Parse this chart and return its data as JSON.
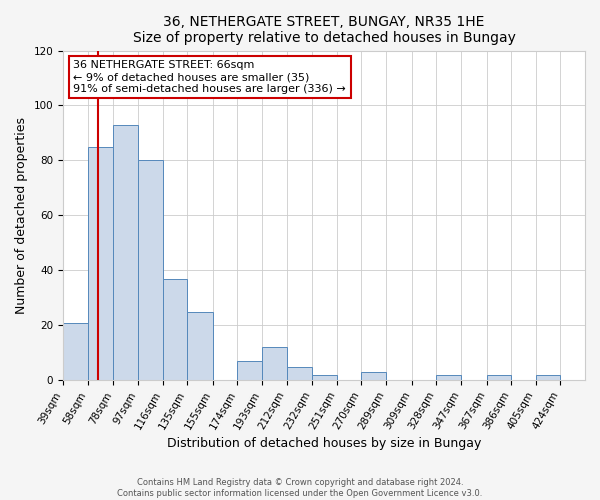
{
  "title1": "36, NETHERGATE STREET, BUNGAY, NR35 1HE",
  "title2": "Size of property relative to detached houses in Bungay",
  "xlabel": "Distribution of detached houses by size in Bungay",
  "ylabel": "Number of detached properties",
  "bin_labels": [
    "39sqm",
    "58sqm",
    "78sqm",
    "97sqm",
    "116sqm",
    "135sqm",
    "155sqm",
    "174sqm",
    "193sqm",
    "212sqm",
    "232sqm",
    "251sqm",
    "270sqm",
    "289sqm",
    "309sqm",
    "328sqm",
    "347sqm",
    "367sqm",
    "386sqm",
    "405sqm",
    "424sqm"
  ],
  "bin_left_edges": [
    39,
    58,
    78,
    97,
    116,
    135,
    155,
    174,
    193,
    212,
    232,
    251,
    270,
    289,
    309,
    328,
    347,
    367,
    386,
    405,
    424
  ],
  "bar_heights": [
    21,
    85,
    93,
    80,
    37,
    25,
    0,
    7,
    12,
    5,
    2,
    0,
    3,
    0,
    0,
    2,
    0,
    2,
    0,
    2,
    0
  ],
  "bar_color": "#ccd9ea",
  "bar_edge_color": "#5588bb",
  "vline_x": 66,
  "vline_color": "#cc0000",
  "annotation_text": "36 NETHERGATE STREET: 66sqm\n← 9% of detached houses are smaller (35)\n91% of semi-detached houses are larger (336) →",
  "annotation_box_facecolor": "#ffffff",
  "annotation_box_edgecolor": "#cc0000",
  "ylim": [
    0,
    120
  ],
  "yticks": [
    0,
    20,
    40,
    60,
    80,
    100,
    120
  ],
  "footer1": "Contains HM Land Registry data © Crown copyright and database right 2024.",
  "footer2": "Contains public sector information licensed under the Open Government Licence v3.0.",
  "bg_color": "#f5f5f5",
  "plot_bg_color": "#ffffff",
  "grid_color": "#cccccc",
  "title_fontsize": 10,
  "axis_label_fontsize": 9,
  "tick_label_fontsize": 7.5,
  "annotation_fontsize": 8,
  "footer_fontsize": 6
}
